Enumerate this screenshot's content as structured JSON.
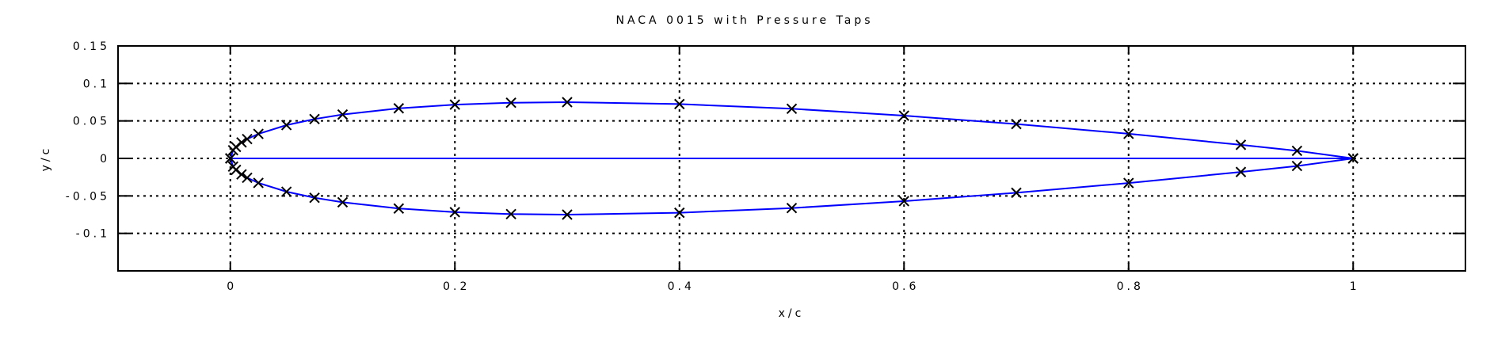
{
  "chart_data": {
    "type": "line",
    "title": "NACA 0015 with Pressure Taps",
    "xlabel": "x/c",
    "ylabel": "y/c",
    "xlim": [
      -0.1,
      1.1
    ],
    "ylim": [
      -0.15,
      0.15
    ],
    "xticks": [
      0,
      0.2,
      0.4,
      0.6,
      0.8,
      1
    ],
    "xtick_labels": [
      "0",
      "0.2",
      "0.4",
      "0.6",
      "0.8",
      "1"
    ],
    "yticks": [
      0.15,
      0.1,
      0.05,
      0,
      -0.05,
      -0.1
    ],
    "ytick_labels": [
      "0.15",
      "0.1",
      "0.05",
      "0",
      "-0.05",
      "-0.1"
    ],
    "grid": true,
    "colors": {
      "airfoil_line": "#0000ff",
      "tap_marker": "#000000",
      "grid": "#000000"
    },
    "tap_marker": "x",
    "x": [
      0,
      0.0025,
      0.005,
      0.01,
      0.015,
      0.025,
      0.05,
      0.075,
      0.1,
      0.15,
      0.2,
      0.25,
      0.3,
      0.4,
      0.5,
      0.6,
      0.7,
      0.8,
      0.9,
      0.95,
      1
    ],
    "series": [
      {
        "role": "upper-surface",
        "y": [
          0,
          0.0109,
          0.0153,
          0.0213,
          0.0258,
          0.0327,
          0.0444,
          0.0525,
          0.0585,
          0.0668,
          0.0717,
          0.0743,
          0.075,
          0.0725,
          0.0662,
          0.057,
          0.0458,
          0.0328,
          0.0181,
          0.0101,
          0
        ]
      },
      {
        "role": "lower-surface",
        "y": [
          0,
          -0.0109,
          -0.0153,
          -0.0213,
          -0.0258,
          -0.0327,
          -0.0444,
          -0.0525,
          -0.0585,
          -0.0668,
          -0.0717,
          -0.0743,
          -0.075,
          -0.0725,
          -0.0662,
          -0.057,
          -0.0458,
          -0.0328,
          -0.0181,
          -0.0101,
          0
        ]
      },
      {
        "role": "chord-line",
        "x": [
          0,
          1
        ],
        "y": [
          0,
          0
        ]
      }
    ]
  }
}
